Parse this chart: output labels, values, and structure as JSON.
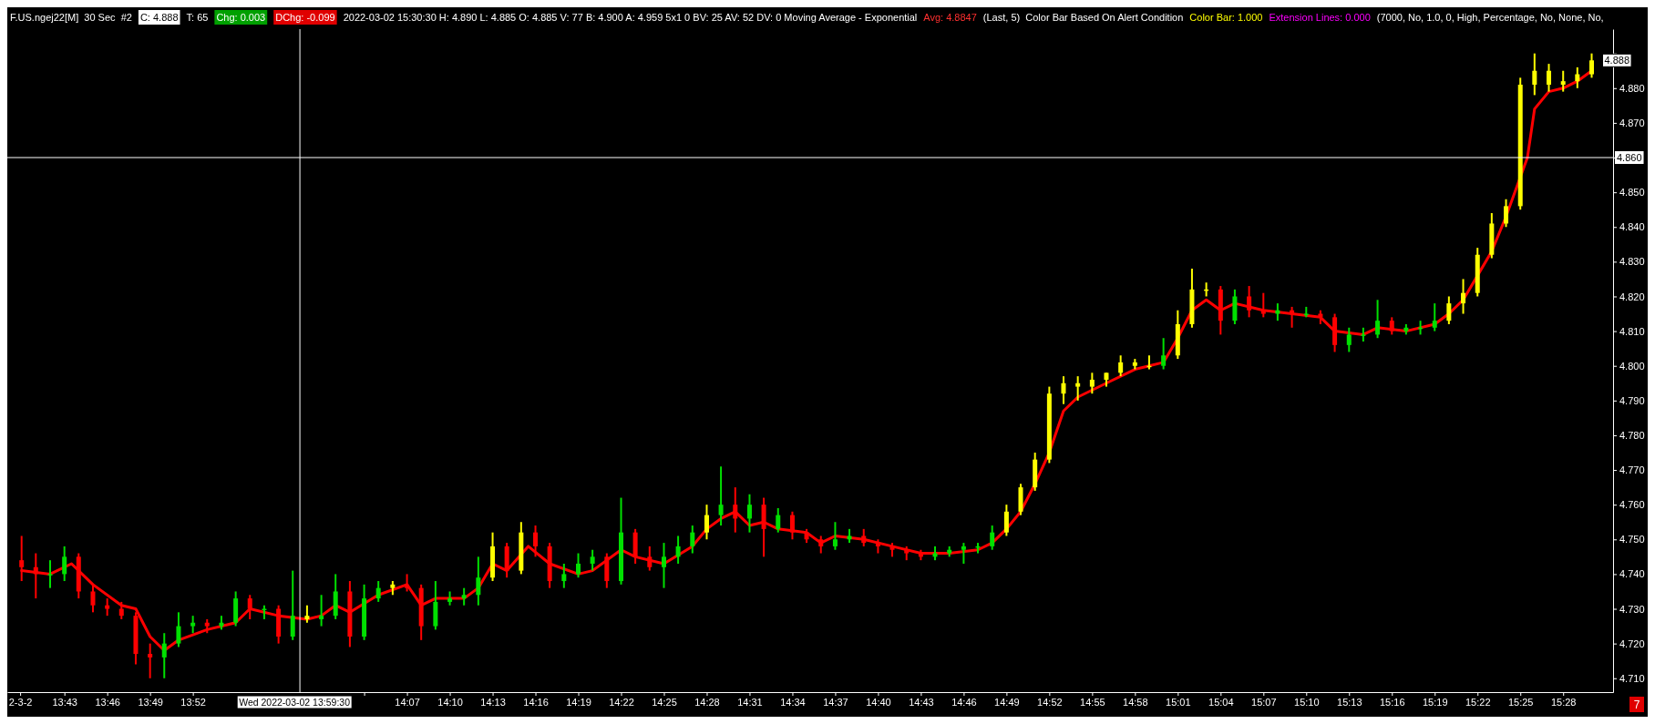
{
  "chart_data": {
    "type": "candlestick",
    "title": "F.US.ngej22[M]  30 Sec  #2",
    "annotations": [
      "C: 4.888",
      "T: 65",
      "Chg: 0.003",
      "DChg: -0.099",
      "2022-03-02 15:30:30 H: 4.890 L: 4.885 O: 4.885 V: 77 B: 4.900 A: 4.959 5x1 0 BV: 25 AV: 52 DV: 0 Moving Average - Exponential",
      "Avg: 4.8847",
      "(Last, 5)  Color Bar Based On Alert Condition",
      "Color Bar: 1.000",
      "Extension Lines: 0.000",
      "(7000, No, 1.0, 0, High, Percentage, No, None, No,",
      "7",
      {
        "text": "4.888",
        "x": 15.5,
        "y": 4.888
      },
      {
        "text": "Wed 2022-03-02 13:59:30",
        "x": 13.991667,
        "y": 4.706
      }
    ],
    "xlim": [
      13.65,
      15.525
    ],
    "ylim": [
      4.706,
      4.897
    ],
    "xticks": [
      {
        "value": 13.665,
        "label": "2-3-2"
      },
      {
        "value": 13.7167,
        "label": "13:43"
      },
      {
        "value": 13.7667,
        "label": "13:46"
      },
      {
        "value": 13.8167,
        "label": "13:49"
      },
      {
        "value": 13.8667,
        "label": "13:52"
      },
      {
        "value": 14.0667,
        "label": null
      },
      {
        "value": 14.1167,
        "label": "14:07"
      },
      {
        "value": 14.1667,
        "label": "14:10"
      },
      {
        "value": 14.2167,
        "label": "14:13"
      },
      {
        "value": 14.2667,
        "label": "14:16"
      },
      {
        "value": 14.3167,
        "label": "14:19"
      },
      {
        "value": 14.3667,
        "label": "14:22"
      },
      {
        "value": 14.4167,
        "label": "14:25"
      },
      {
        "value": 14.4667,
        "label": "14:28"
      },
      {
        "value": 14.5167,
        "label": "14:31"
      },
      {
        "value": 14.5667,
        "label": "14:34"
      },
      {
        "value": 14.6167,
        "label": "14:37"
      },
      {
        "value": 14.6667,
        "label": "14:40"
      },
      {
        "value": 14.7167,
        "label": "14:43"
      },
      {
        "value": 14.7667,
        "label": "14:46"
      },
      {
        "value": 14.8167,
        "label": "14:49"
      },
      {
        "value": 14.8667,
        "label": "14:52"
      },
      {
        "value": 14.9167,
        "label": "14:55"
      },
      {
        "value": 14.9667,
        "label": "14:58"
      },
      {
        "value": 15.0167,
        "label": "15:01"
      },
      {
        "value": 15.0667,
        "label": "15:04"
      },
      {
        "value": 15.1167,
        "label": "15:07"
      },
      {
        "value": 15.1667,
        "label": "15:10"
      },
      {
        "value": 15.2167,
        "label": "15:13"
      },
      {
        "value": 15.2667,
        "label": "15:16"
      },
      {
        "value": 15.3167,
        "label": "15:19"
      },
      {
        "value": 15.3667,
        "label": "15:22"
      },
      {
        "value": 15.4167,
        "label": "15:25"
      },
      {
        "value": 15.4667,
        "label": "15:28"
      }
    ],
    "yticks": [
      {
        "value": 4.71,
        "label": "4.710"
      },
      {
        "value": 4.72,
        "label": "4.720"
      },
      {
        "value": 4.73,
        "label": "4.730"
      },
      {
        "value": 4.74,
        "label": "4.740"
      },
      {
        "value": 4.75,
        "label": "4.750"
      },
      {
        "value": 4.76,
        "label": "4.760"
      },
      {
        "value": 4.77,
        "label": "4.770"
      },
      {
        "value": 4.78,
        "label": "4.780"
      },
      {
        "value": 4.79,
        "label": "4.790"
      },
      {
        "value": 4.8,
        "label": "4.800"
      },
      {
        "value": 4.81,
        "label": "4.810"
      },
      {
        "value": 4.82,
        "label": "4.820"
      },
      {
        "value": 4.83,
        "label": "4.830"
      },
      {
        "value": 4.84,
        "label": "4.840"
      },
      {
        "value": 4.85,
        "label": "4.850"
      },
      {
        "value": 4.86,
        "label": null
      },
      {
        "value": 4.87,
        "label": "4.870"
      },
      {
        "value": 4.88,
        "label": "4.880"
      },
      {
        "value": 4.89,
        "label": null
      }
    ],
    "ref_lines": [
      {
        "axis": "x",
        "value": 13.991667,
        "color": "#ffffff"
      },
      {
        "axis": "y",
        "value": 4.86,
        "label": "4.860",
        "color": "#ffffff"
      }
    ],
    "x": [
      13.6667,
      13.6833,
      13.7,
      13.7167,
      13.7333,
      13.75,
      13.7667,
      13.7833,
      13.8,
      13.8167,
      13.8333,
      13.85,
      13.8667,
      13.8833,
      13.9,
      13.9167,
      13.9333,
      13.95,
      13.9667,
      13.9833,
      14,
      14.0167,
      14.0333,
      14.05,
      14.0667,
      14.0833,
      14.1,
      14.1167,
      14.1333,
      14.15,
      14.1667,
      14.1833,
      14.2,
      14.2167,
      14.2333,
      14.25,
      14.2667,
      14.2833,
      14.3,
      14.3167,
      14.3333,
      14.35,
      14.3667,
      14.3833,
      14.4,
      14.4167,
      14.4333,
      14.45,
      14.4667,
      14.4833,
      14.5,
      14.5167,
      14.5333,
      14.55,
      14.5667,
      14.5833,
      14.6,
      14.6167,
      14.6333,
      14.65,
      14.6667,
      14.6833,
      14.7,
      14.7167,
      14.7333,
      14.75,
      14.7667,
      14.7833,
      14.8,
      14.8167,
      14.8333,
      14.85,
      14.8667,
      14.8833,
      14.9,
      14.9167,
      14.9333,
      14.95,
      14.9667,
      14.9833,
      15,
      15.0167,
      15.0333,
      15.05,
      15.0667,
      15.0833,
      15.1,
      15.1167,
      15.1333,
      15.15,
      15.1667,
      15.1833,
      15.2,
      15.2167,
      15.2333,
      15.25,
      15.2667,
      15.2833,
      15.3,
      15.3167,
      15.3333,
      15.35,
      15.3667,
      15.3833,
      15.4,
      15.4167,
      15.4333,
      15.45,
      15.4667,
      15.4833,
      15.5
    ],
    "ohlc": [
      [
        4.744,
        4.751,
        4.738,
        4.742
      ],
      [
        4.742,
        4.746,
        4.733,
        4.74
      ],
      [
        4.74,
        4.744,
        4.736,
        4.74
      ],
      [
        4.74,
        4.748,
        4.738,
        4.745
      ],
      [
        4.745,
        4.746,
        4.733,
        4.735
      ],
      [
        4.735,
        4.737,
        4.729,
        4.731
      ],
      [
        4.731,
        4.733,
        4.728,
        4.73
      ],
      [
        4.73,
        4.732,
        4.727,
        4.728
      ],
      [
        4.728,
        4.729,
        4.714,
        4.717
      ],
      [
        4.717,
        4.72,
        4.71,
        4.716
      ],
      [
        4.716,
        4.723,
        4.71,
        4.72
      ],
      [
        4.72,
        4.729,
        4.719,
        4.725
      ],
      [
        4.725,
        4.728,
        4.723,
        4.726
      ],
      [
        4.726,
        4.727,
        4.723,
        4.725
      ],
      [
        4.725,
        4.728,
        4.724,
        4.726
      ],
      [
        4.726,
        4.735,
        4.725,
        4.733
      ],
      [
        4.733,
        4.734,
        4.727,
        4.73
      ],
      [
        4.73,
        4.731,
        4.727,
        4.73
      ],
      [
        4.73,
        4.731,
        4.72,
        4.722
      ],
      [
        4.722,
        4.741,
        4.721,
        4.728
      ],
      [
        4.728,
        4.731,
        4.726,
        4.727
      ],
      [
        4.727,
        4.734,
        4.725,
        4.728
      ],
      [
        4.728,
        4.74,
        4.727,
        4.735
      ],
      [
        4.735,
        4.738,
        4.719,
        4.722
      ],
      [
        4.722,
        4.737,
        4.721,
        4.733
      ],
      [
        4.733,
        4.738,
        4.732,
        4.736
      ],
      [
        4.736,
        4.738,
        4.734,
        4.737
      ],
      [
        4.737,
        4.74,
        4.735,
        4.736
      ],
      [
        4.736,
        4.737,
        4.721,
        4.725
      ],
      [
        4.725,
        4.738,
        4.724,
        4.732
      ],
      [
        4.732,
        4.735,
        4.731,
        4.733
      ],
      [
        4.733,
        4.736,
        4.731,
        4.734
      ],
      [
        4.734,
        4.745,
        4.731,
        4.739
      ],
      [
        4.739,
        4.752,
        4.738,
        4.748
      ],
      [
        4.748,
        4.749,
        4.739,
        4.741
      ],
      [
        4.741,
        4.755,
        4.74,
        4.752
      ],
      [
        4.752,
        4.754,
        4.745,
        4.748
      ],
      [
        4.748,
        4.749,
        4.736,
        4.738
      ],
      [
        4.738,
        4.743,
        4.736,
        4.74
      ],
      [
        4.74,
        4.746,
        4.739,
        4.743
      ],
      [
        4.743,
        4.747,
        4.741,
        4.745
      ],
      [
        4.745,
        4.746,
        4.736,
        4.738
      ],
      [
        4.738,
        4.762,
        4.737,
        4.752
      ],
      [
        4.752,
        4.753,
        4.743,
        4.745
      ],
      [
        4.745,
        4.748,
        4.741,
        4.742
      ],
      [
        4.742,
        4.749,
        4.736,
        4.745
      ],
      [
        4.745,
        4.751,
        4.743,
        4.748
      ],
      [
        4.748,
        4.754,
        4.746,
        4.752
      ],
      [
        4.752,
        4.76,
        4.75,
        4.757
      ],
      [
        4.757,
        4.771,
        4.754,
        4.76
      ],
      [
        4.76,
        4.765,
        4.752,
        4.756
      ],
      [
        4.756,
        4.763,
        4.752,
        4.76
      ],
      [
        4.76,
        4.762,
        4.745,
        4.753
      ],
      [
        4.753,
        4.759,
        4.752,
        4.757
      ],
      [
        4.757,
        4.758,
        4.75,
        4.752
      ],
      [
        4.752,
        4.753,
        4.749,
        4.75
      ],
      [
        4.75,
        4.751,
        4.746,
        4.748
      ],
      [
        4.748,
        4.755,
        4.747,
        4.75
      ],
      [
        4.75,
        4.753,
        4.749,
        4.751
      ],
      [
        4.751,
        4.753,
        4.748,
        4.749
      ],
      [
        4.749,
        4.75,
        4.746,
        4.748
      ],
      [
        4.748,
        4.749,
        4.745,
        4.747
      ],
      [
        4.747,
        4.748,
        4.744,
        4.746
      ],
      [
        4.746,
        4.747,
        4.744,
        4.745
      ],
      [
        4.745,
        4.748,
        4.744,
        4.746
      ],
      [
        4.746,
        4.748,
        4.745,
        4.747
      ],
      [
        4.747,
        4.749,
        4.743,
        4.748
      ],
      [
        4.748,
        4.749,
        4.746,
        4.748
      ],
      [
        4.748,
        4.754,
        4.747,
        4.752
      ],
      [
        4.752,
        4.76,
        4.751,
        4.758
      ],
      [
        4.758,
        4.766,
        4.757,
        4.765
      ],
      [
        4.765,
        4.775,
        4.764,
        4.773
      ],
      [
        4.773,
        4.794,
        4.772,
        4.792
      ],
      [
        4.792,
        4.797,
        4.789,
        4.795
      ],
      [
        4.795,
        4.797,
        4.79,
        4.794
      ],
      [
        4.794,
        4.798,
        4.792,
        4.796
      ],
      [
        4.796,
        4.798,
        4.794,
        4.798
      ],
      [
        4.798,
        4.803,
        4.797,
        4.801
      ],
      [
        4.801,
        4.802,
        4.799,
        4.8
      ],
      [
        4.8,
        4.803,
        4.799,
        4.8
      ],
      [
        4.8,
        4.808,
        4.799,
        4.803
      ],
      [
        4.803,
        4.816,
        4.802,
        4.812
      ],
      [
        4.812,
        4.828,
        4.811,
        4.822
      ],
      [
        4.822,
        4.824,
        4.82,
        4.822
      ],
      [
        4.822,
        4.823,
        4.809,
        4.813
      ],
      [
        4.813,
        4.822,
        4.812,
        4.82
      ],
      [
        4.82,
        4.823,
        4.814,
        4.816
      ],
      [
        4.816,
        4.821,
        4.814,
        4.815
      ],
      [
        4.815,
        4.818,
        4.813,
        4.816
      ],
      [
        4.816,
        4.817,
        4.811,
        4.815
      ],
      [
        4.815,
        4.817,
        4.814,
        4.815
      ],
      [
        4.815,
        4.816,
        4.812,
        4.814
      ],
      [
        4.814,
        4.815,
        4.804,
        4.806
      ],
      [
        4.806,
        4.811,
        4.804,
        4.809
      ],
      [
        4.809,
        4.811,
        4.807,
        4.809
      ],
      [
        4.809,
        4.819,
        4.808,
        4.813
      ],
      [
        4.813,
        4.814,
        4.809,
        4.81
      ],
      [
        4.81,
        4.812,
        4.809,
        4.811
      ],
      [
        4.811,
        4.813,
        4.809,
        4.811
      ],
      [
        4.811,
        4.818,
        4.81,
        4.813
      ],
      [
        4.813,
        4.82,
        4.812,
        4.818
      ],
      [
        4.818,
        4.825,
        4.815,
        4.821
      ],
      [
        4.821,
        4.834,
        4.82,
        4.832
      ],
      [
        4.832,
        4.844,
        4.831,
        4.841
      ],
      [
        4.841,
        4.848,
        4.84,
        4.846
      ],
      [
        4.846,
        4.883,
        4.845,
        4.881
      ],
      [
        4.881,
        4.89,
        4.878,
        4.885
      ],
      [
        4.885,
        4.887,
        4.879,
        4.881
      ],
      [
        4.881,
        4.885,
        4.879,
        4.882
      ],
      [
        4.882,
        4.886,
        4.88,
        4.884
      ],
      [
        4.884,
        4.89,
        4.883,
        4.888
      ]
    ],
    "colors": [
      "#ff0000",
      "#ff0000",
      "#00e000",
      "#00e000",
      "#ff0000",
      "#ff0000",
      "#ff0000",
      "#ff0000",
      "#ff0000",
      "#ff0000",
      "#00e000",
      "#00e000",
      "#00e000",
      "#ff0000",
      "#00e000",
      "#00e000",
      "#ff0000",
      "#00e000",
      "#ff0000",
      "#00e000",
      "#ffff00",
      "#00e000",
      "#00e000",
      "#ff0000",
      "#00e000",
      "#00e000",
      "#ffff00",
      "#ff0000",
      "#ff0000",
      "#00e000",
      "#00e000",
      "#00e000",
      "#00e000",
      "#ffff00",
      "#ff0000",
      "#ffff00",
      "#ff0000",
      "#ff0000",
      "#00e000",
      "#00e000",
      "#00e000",
      "#ff0000",
      "#00e000",
      "#ff0000",
      "#ff0000",
      "#00e000",
      "#00e000",
      "#00e000",
      "#ffff00",
      "#00e000",
      "#ff0000",
      "#00e000",
      "#ff0000",
      "#00e000",
      "#ff0000",
      "#ff0000",
      "#ff0000",
      "#00e000",
      "#00e000",
      "#ff0000",
      "#ff0000",
      "#ff0000",
      "#ff0000",
      "#ff0000",
      "#00e000",
      "#00e000",
      "#00e000",
      "#00e000",
      "#00e000",
      "#ffff00",
      "#ffff00",
      "#ffff00",
      "#ffff00",
      "#ffff00",
      "#ffff00",
      "#ffff00",
      "#ffff00",
      "#ffff00",
      "#ffff00",
      "#ffff00",
      "#00e000",
      "#ffff00",
      "#ffff00",
      "#ffff00",
      "#ff0000",
      "#00e000",
      "#ff0000",
      "#ff0000",
      "#00e000",
      "#ff0000",
      "#00e000",
      "#ff0000",
      "#ff0000",
      "#00e000",
      "#00e000",
      "#00e000",
      "#ff0000",
      "#00e000",
      "#00e000",
      "#00e000",
      "#ffff00",
      "#ffff00",
      "#ffff00",
      "#ffff00",
      "#ffff00",
      "#ffff00",
      "#ffff00",
      "#ffff00",
      "#ffff00",
      "#ffff00",
      "#ffff00"
    ],
    "series": [
      {
        "type": "line",
        "color": "#ff0000",
        "x": [
          13.6667,
          13.7,
          13.725,
          13.75,
          13.7833,
          13.8,
          13.8167,
          13.8333,
          13.85,
          13.8833,
          13.9167,
          13.9333,
          13.9667,
          14,
          14.0167,
          14.0333,
          14.05,
          14.0833,
          14.1167,
          14.1333,
          14.15,
          14.1833,
          14.2,
          14.2167,
          14.2333,
          14.2583,
          14.2833,
          14.3167,
          14.3333,
          14.3667,
          14.3833,
          14.4167,
          14.45,
          14.4667,
          14.4833,
          14.5,
          14.5167,
          14.5333,
          14.55,
          14.5833,
          14.6,
          14.6167,
          14.65,
          14.6833,
          14.7167,
          14.75,
          14.7833,
          14.8,
          14.8167,
          14.8333,
          14.85,
          14.8667,
          14.8833,
          14.9,
          14.9333,
          14.9667,
          14.9833,
          15,
          15.0167,
          15.0333,
          15.05,
          15.0667,
          15.0833,
          15.1167,
          15.15,
          15.1833,
          15.2,
          15.2333,
          15.25,
          15.2833,
          15.3167,
          15.3333,
          15.35,
          15.3667,
          15.3833,
          15.4,
          15.425,
          15.4333,
          15.45,
          15.4667,
          15.4833,
          15.5
        ],
        "values": [
          4.741,
          4.74,
          4.743,
          4.737,
          4.731,
          4.73,
          4.722,
          4.718,
          4.721,
          4.724,
          4.726,
          4.73,
          4.728,
          4.727,
          4.728,
          4.731,
          4.729,
          4.734,
          4.737,
          4.731,
          4.733,
          4.733,
          4.736,
          4.743,
          4.741,
          4.748,
          4.743,
          4.74,
          4.741,
          4.747,
          4.745,
          4.743,
          4.748,
          4.753,
          4.756,
          4.758,
          4.754,
          4.755,
          4.753,
          4.752,
          4.749,
          4.751,
          4.75,
          4.748,
          4.746,
          4.746,
          4.747,
          4.749,
          4.753,
          4.758,
          4.766,
          4.775,
          4.787,
          4.791,
          4.795,
          4.799,
          4.8,
          4.801,
          4.808,
          4.816,
          4.819,
          4.816,
          4.818,
          4.816,
          4.815,
          4.814,
          4.81,
          4.809,
          4.811,
          4.81,
          4.812,
          4.815,
          4.819,
          4.826,
          4.833,
          4.843,
          4.86,
          4.874,
          4.879,
          4.88,
          4.882,
          4.885
        ]
      }
    ]
  }
}
